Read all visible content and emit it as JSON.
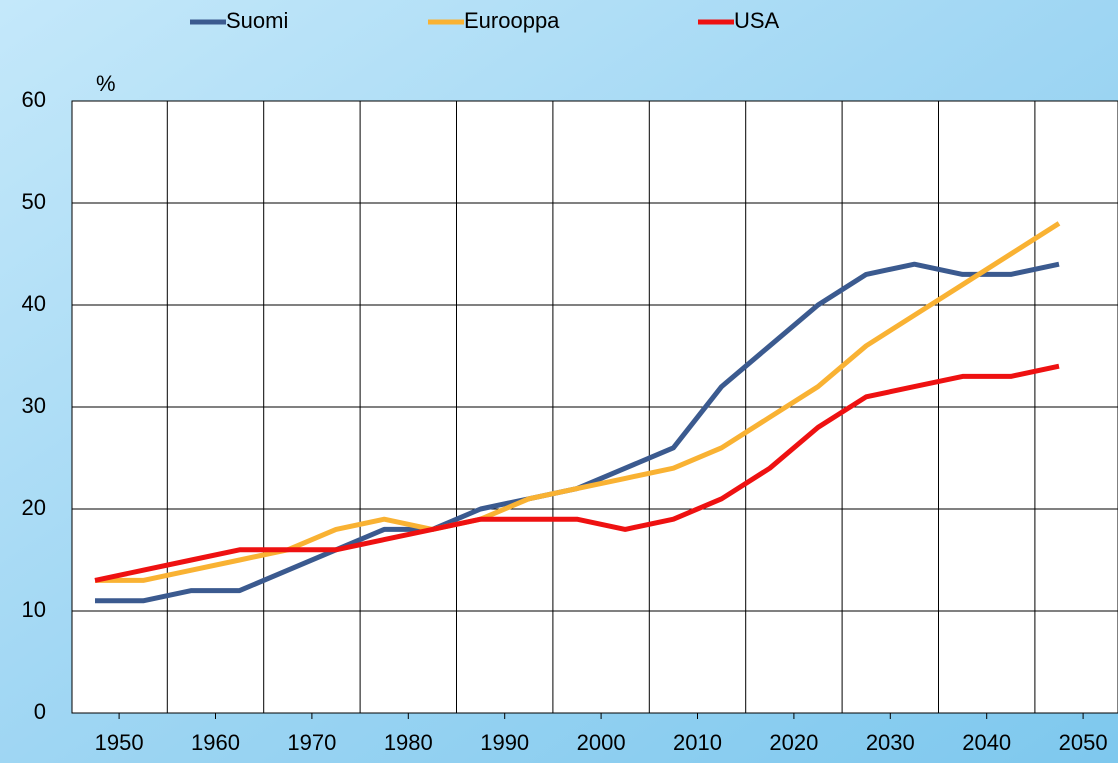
{
  "chart_data": {
    "type": "line",
    "y_axis_label": "%",
    "categories": [
      "1950",
      null,
      "1960",
      null,
      "1970",
      null,
      "1980",
      null,
      "1990",
      null,
      "2000",
      null,
      "2010",
      null,
      "2020",
      null,
      "2030",
      null,
      "2040",
      null,
      "2050"
    ],
    "series": [
      {
        "name": "Suomi",
        "color": "#3b5a8f",
        "values": [
          11,
          11,
          12,
          12,
          14,
          16,
          18,
          18,
          20,
          21,
          22,
          24,
          26,
          32,
          36,
          40,
          43,
          44,
          43,
          43,
          44
        ]
      },
      {
        "name": "Eurooppa",
        "color": "#f9b233",
        "values": [
          13,
          13,
          14,
          15,
          16,
          18,
          19,
          18,
          19,
          21,
          22,
          23,
          24,
          26,
          29,
          32,
          36,
          39,
          42,
          45,
          48
        ]
      },
      {
        "name": "USA",
        "color": "#ee1111",
        "values": [
          13,
          14,
          15,
          16,
          16,
          16,
          17,
          18,
          19,
          19,
          19,
          18,
          19,
          21,
          24,
          28,
          31,
          32,
          33,
          33,
          34
        ]
      }
    ],
    "ylim": [
      0,
      60
    ],
    "yticks": [
      0,
      10,
      20,
      30,
      40,
      50,
      60
    ],
    "grid": true,
    "legend": "top"
  }
}
